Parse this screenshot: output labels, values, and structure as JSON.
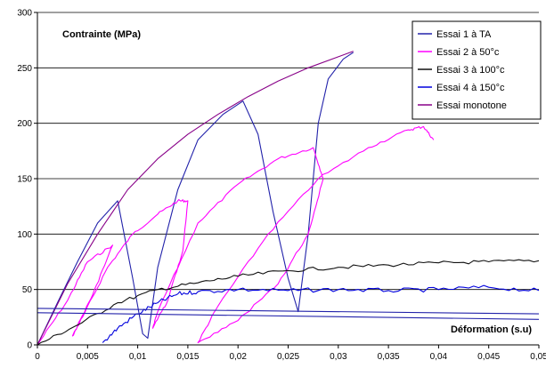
{
  "chart_data": {
    "type": "line",
    "title": "",
    "ylabel": "Contrainte (MPa)",
    "xlabel": "Déformation (s.u)",
    "xlim": [
      0,
      0.05
    ],
    "ylim": [
      0,
      300
    ],
    "x_ticks": [
      "0",
      "0,005",
      "0,01",
      "0,015",
      "0,02",
      "0,025",
      "0,03",
      "0,035",
      "0,04",
      "0,045",
      "0,05"
    ],
    "y_ticks": [
      "0",
      "50",
      "100",
      "150",
      "200",
      "250",
      "300"
    ],
    "grid": "horizontal",
    "legend_position": "top-right",
    "series": [
      {
        "name": "Essai 1 à TA",
        "color": "#2222aa",
        "jitter": 0,
        "points": [
          [
            0,
            0
          ],
          [
            0.002,
            38
          ],
          [
            0.004,
            75
          ],
          [
            0.006,
            110
          ],
          [
            0.008,
            130
          ],
          [
            0.0095,
            60
          ],
          [
            0.0105,
            10
          ],
          [
            0.011,
            6
          ],
          [
            0.012,
            70
          ],
          [
            0.014,
            140
          ],
          [
            0.016,
            185
          ],
          [
            0.0185,
            208
          ],
          [
            0.0205,
            220
          ],
          [
            0.022,
            190
          ],
          [
            0.0235,
            120
          ],
          [
            0.025,
            60
          ],
          [
            0.026,
            30
          ],
          [
            0.027,
            100
          ],
          [
            0.028,
            200
          ],
          [
            0.029,
            240
          ],
          [
            0.0305,
            258
          ],
          [
            0.0315,
            264
          ]
        ]
      },
      {
        "name": "Essai 2 à 50°c",
        "color": "#ff00ff",
        "jitter": 1.5,
        "points": [
          [
            0,
            0
          ],
          [
            0.003,
            40
          ],
          [
            0.005,
            75
          ],
          [
            0.0075,
            90
          ],
          [
            0.0055,
            45
          ],
          [
            0.0035,
            8
          ],
          [
            0.0045,
            25
          ],
          [
            0.007,
            70
          ],
          [
            0.0095,
            100
          ],
          [
            0.012,
            118
          ],
          [
            0.014,
            130
          ],
          [
            0.015,
            130
          ],
          [
            0.0145,
            85
          ],
          [
            0.013,
            40
          ],
          [
            0.0115,
            15
          ],
          [
            0.012,
            30
          ],
          [
            0.016,
            110
          ],
          [
            0.02,
            145
          ],
          [
            0.024,
            168
          ],
          [
            0.0275,
            178
          ],
          [
            0.0285,
            150
          ],
          [
            0.027,
            100
          ],
          [
            0.024,
            55
          ],
          [
            0.02,
            22
          ],
          [
            0.016,
            2
          ],
          [
            0.018,
            35
          ],
          [
            0.023,
            100
          ],
          [
            0.028,
            150
          ],
          [
            0.033,
            178
          ],
          [
            0.037,
            194
          ],
          [
            0.0385,
            197
          ],
          [
            0.0395,
            185
          ]
        ]
      },
      {
        "name": "Essai 3 à 100°c",
        "color": "#111111",
        "jitter": 2,
        "points": [
          [
            0,
            0
          ],
          [
            0.004,
            18
          ],
          [
            0.008,
            38
          ],
          [
            0.012,
            50
          ],
          [
            0.016,
            56
          ],
          [
            0.02,
            62
          ],
          [
            0.025,
            67
          ],
          [
            0.03,
            70
          ],
          [
            0.035,
            72
          ],
          [
            0.04,
            74
          ],
          [
            0.045,
            75
          ],
          [
            0.05,
            76
          ]
        ]
      },
      {
        "name": "Essai 4 à 150°c",
        "color": "#0000dd",
        "jitter": 2.5,
        "points": [
          [
            0.0065,
            2
          ],
          [
            0.008,
            15
          ],
          [
            0.01,
            28
          ],
          [
            0.012,
            38
          ],
          [
            0.014,
            46
          ],
          [
            0.016,
            48
          ],
          [
            0.02,
            50
          ],
          [
            0.025,
            49
          ],
          [
            0.03,
            50
          ],
          [
            0.035,
            49
          ],
          [
            0.04,
            50
          ],
          [
            0.045,
            52
          ],
          [
            0.05,
            49
          ]
        ]
      },
      {
        "name": "Essai monotone",
        "color": "#880088",
        "jitter": 0,
        "points": [
          [
            0,
            0
          ],
          [
            0.003,
            55
          ],
          [
            0.006,
            100
          ],
          [
            0.009,
            140
          ],
          [
            0.012,
            168
          ],
          [
            0.015,
            190
          ],
          [
            0.018,
            208
          ],
          [
            0.021,
            224
          ],
          [
            0.024,
            238
          ],
          [
            0.027,
            250
          ],
          [
            0.03,
            260
          ],
          [
            0.0315,
            265
          ]
        ]
      },
      {
        "name": "",
        "color": "#2222aa",
        "jitter": 0,
        "points": [
          [
            0,
            33
          ],
          [
            0.05,
            28
          ]
        ]
      },
      {
        "name": "",
        "color": "#2222aa",
        "jitter": 0,
        "points": [
          [
            0,
            29
          ],
          [
            0.05,
            23
          ]
        ]
      }
    ]
  }
}
